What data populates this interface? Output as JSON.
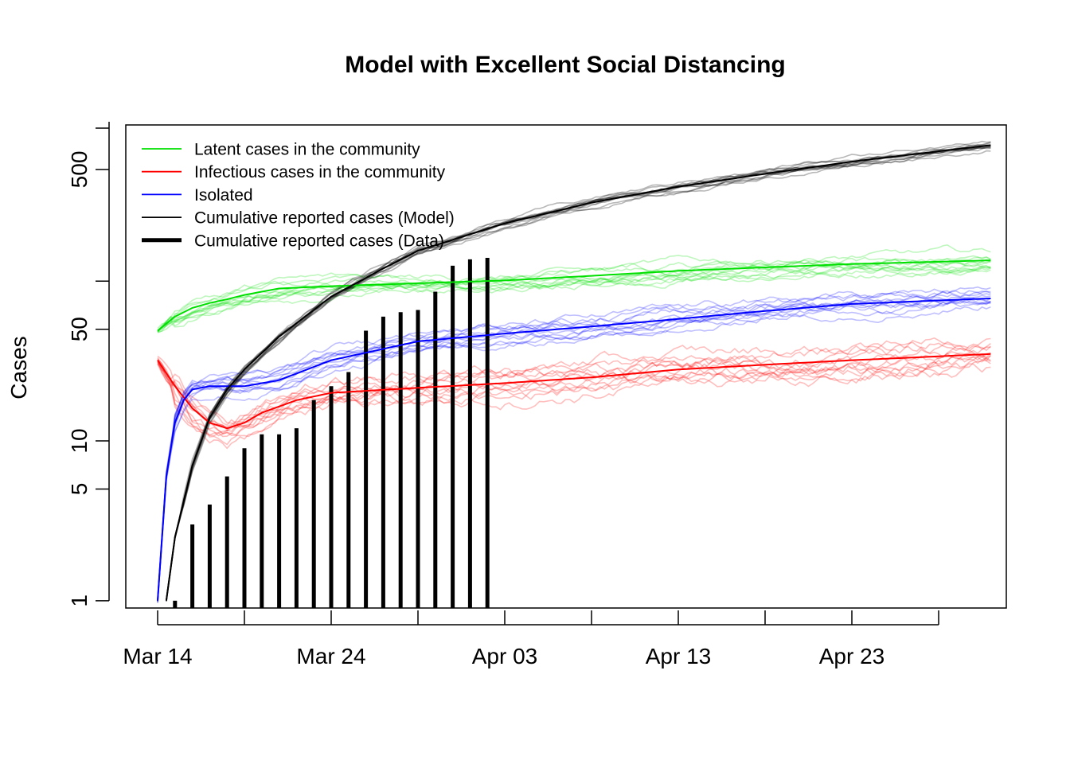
{
  "chart_data": {
    "type": "line",
    "title": "Model with Excellent Social Distancing",
    "xlabel": "",
    "ylabel": "Cases",
    "y_scale": "log",
    "ylim": [
      0.9,
      950
    ],
    "xlim": [
      "2020-03-14",
      "2020-05-01"
    ],
    "y_ticks": [
      1,
      5,
      10,
      50,
      500
    ],
    "y_tick_labels": [
      "1",
      "5",
      "10",
      "50",
      "500"
    ],
    "x_ticks": [
      "2020-03-14",
      "2020-03-19",
      "2020-03-24",
      "2020-03-29",
      "2020-04-03",
      "2020-04-08",
      "2020-04-13",
      "2020-04-18",
      "2020-04-23",
      "2020-04-28"
    ],
    "x_tick_labels": [
      "Mar 14",
      "",
      "Mar 24",
      "",
      "Apr 03",
      "",
      "Apr 13",
      "",
      "Apr 23",
      ""
    ],
    "legend_position": "top-left",
    "legend": [
      {
        "label": "Latent cases in the community",
        "color": "#00e000",
        "width": "thin"
      },
      {
        "label": "Infectious cases in the community",
        "color": "#ff0000",
        "width": "thin"
      },
      {
        "label": "Isolated",
        "color": "#0000ff",
        "width": "thin"
      },
      {
        "label": "Cumulative reported cases (Model)",
        "color": "#000000",
        "width": "thin"
      },
      {
        "label": "Cumulative reported cases (Data)",
        "color": "#000000",
        "width": "thick"
      }
    ],
    "series": [
      {
        "name": "Latent cases in the community",
        "color": "#00e000",
        "x": [
          "2020-03-14",
          "2020-03-15",
          "2020-03-16",
          "2020-03-17",
          "2020-03-18",
          "2020-03-19",
          "2020-03-21",
          "2020-03-24",
          "2020-03-29",
          "2020-04-03",
          "2020-04-08",
          "2020-04-13",
          "2020-04-18",
          "2020-04-23",
          "2020-05-01"
        ],
        "y": [
          49,
          60,
          68,
          73,
          77,
          82,
          90,
          93,
          97,
          101,
          108,
          116,
          122,
          128,
          135
        ]
      },
      {
        "name": "Infectious cases in the community",
        "color": "#ff0000",
        "x": [
          "2020-03-14",
          "2020-03-15",
          "2020-03-16",
          "2020-03-17",
          "2020-03-18",
          "2020-03-19",
          "2020-03-20",
          "2020-03-22",
          "2020-03-24",
          "2020-03-29",
          "2020-04-03",
          "2020-04-08",
          "2020-04-13",
          "2020-04-18",
          "2020-04-23",
          "2020-05-01"
        ],
        "y": [
          32,
          22,
          16,
          13,
          12,
          13,
          15,
          18,
          20,
          21.5,
          23,
          25,
          28,
          30,
          32,
          35
        ]
      },
      {
        "name": "Isolated",
        "color": "#0000ff",
        "x": [
          "2020-03-14",
          "2020-03-14T12:00",
          "2020-03-15",
          "2020-03-15T12:00",
          "2020-03-16",
          "2020-03-17",
          "2020-03-19",
          "2020-03-21",
          "2020-03-24",
          "2020-03-29",
          "2020-04-03",
          "2020-04-08",
          "2020-04-13",
          "2020-04-18",
          "2020-04-23",
          "2020-05-01"
        ],
        "y": [
          1,
          6,
          13,
          18,
          21,
          22,
          22,
          24,
          32,
          42,
          47,
          52,
          58,
          65,
          72,
          78
        ]
      },
      {
        "name": "Cumulative reported cases (Model)",
        "color": "#000000",
        "x": [
          "2020-03-14T12:00",
          "2020-03-15",
          "2020-03-16",
          "2020-03-17",
          "2020-03-18",
          "2020-03-19",
          "2020-03-21",
          "2020-03-24",
          "2020-03-27",
          "2020-03-29",
          "2020-04-03",
          "2020-04-08",
          "2020-04-13",
          "2020-04-18",
          "2020-04-23",
          "2020-04-28",
          "2020-05-01"
        ],
        "y": [
          1,
          2.5,
          7,
          14,
          21,
          28,
          45,
          80,
          120,
          155,
          230,
          310,
          390,
          470,
          560,
          650,
          710
        ]
      },
      {
        "name": "Cumulative reported cases (Data)",
        "type": "bar",
        "color": "#000000",
        "x": [
          "2020-03-15",
          "2020-03-16",
          "2020-03-17",
          "2020-03-18",
          "2020-03-19",
          "2020-03-20",
          "2020-03-21",
          "2020-03-22",
          "2020-03-23",
          "2020-03-24",
          "2020-03-25",
          "2020-03-26",
          "2020-03-27",
          "2020-03-28",
          "2020-03-29",
          "2020-03-30",
          "2020-03-31",
          "2020-04-01",
          "2020-04-02"
        ],
        "y": [
          1,
          3,
          4,
          6,
          9,
          11,
          11,
          12,
          18,
          22,
          27,
          49,
          60,
          64,
          66,
          86,
          125,
          137,
          140
        ]
      }
    ]
  }
}
